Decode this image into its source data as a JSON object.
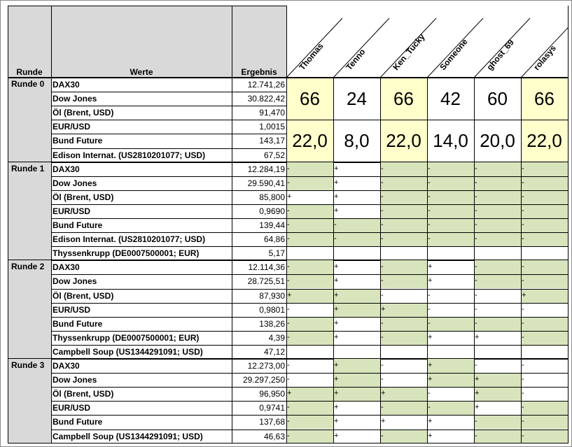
{
  "headers": {
    "runde": "Runde",
    "werte": "Werte",
    "ergebnis": "Ergebnis"
  },
  "players": [
    "Thomas",
    "Tenno",
    "Ken_Tucky",
    "Someone",
    "ghost_69",
    "rolasys"
  ],
  "rounds": [
    {
      "name": "Runde 0",
      "rows": [
        {
          "label": "DAX30",
          "value": "12.741,26"
        },
        {
          "label": "Dow Jones",
          "value": "30.822,42"
        },
        {
          "label": "Öl (Brent, USD)",
          "value": "91,470"
        },
        {
          "label": "EUR/USD",
          "value": "1,0015"
        },
        {
          "label": "Bund Future",
          "value": "143,17"
        },
        {
          "label": "Edison Internat. (US2810201077; USD)",
          "value": "67,52"
        }
      ],
      "scores_top": [
        "66",
        "24",
        "66",
        "42",
        "60",
        "66"
      ],
      "scores_bottom": [
        "22,0",
        "8,0",
        "22,0",
        "14,0",
        "20,0",
        "22,0"
      ]
    },
    {
      "name": "Runde 1",
      "rows": [
        {
          "label": "DAX30",
          "value": "12.284,19",
          "tips": [
            "-",
            "+",
            "-",
            "-",
            "-",
            "-"
          ],
          "green": [
            true,
            false,
            true,
            true,
            true,
            true
          ]
        },
        {
          "label": "Dow Jones",
          "value": "29.590,41",
          "tips": [
            "-",
            "+",
            "-",
            "-",
            "-",
            "-"
          ],
          "green": [
            true,
            false,
            true,
            true,
            true,
            true
          ]
        },
        {
          "label": "Öl (Brent, USD)",
          "value": "85,800",
          "tips": [
            "+",
            "+",
            "-",
            "-",
            "-",
            "-"
          ],
          "green": [
            false,
            false,
            true,
            true,
            true,
            true
          ]
        },
        {
          "label": "EUR/USD",
          "value": "0,9690",
          "tips": [
            "-",
            "+",
            "-",
            "-",
            "-",
            "-"
          ],
          "green": [
            true,
            false,
            true,
            true,
            true,
            true
          ]
        },
        {
          "label": "Bund Future",
          "value": "139,44",
          "tips": [
            "-",
            "-",
            "-",
            "-",
            "-",
            "-"
          ],
          "green": [
            true,
            true,
            true,
            true,
            true,
            true
          ]
        },
        {
          "label": "Edison Internat. (US2810201077; USD)",
          "value": "64,86",
          "tips": [
            "-",
            "-",
            "-",
            "-",
            "-",
            "-"
          ],
          "green": [
            true,
            true,
            true,
            true,
            true,
            true
          ]
        },
        {
          "label": "Thyssenkrupp (DE0007500001; EUR)",
          "value": "5,17"
        }
      ]
    },
    {
      "name": "Runde 2",
      "rows": [
        {
          "label": "DAX30",
          "value": "12.114,36",
          "tips": [
            "-",
            "+",
            "-",
            "+",
            "-",
            "-"
          ],
          "green": [
            true,
            false,
            true,
            false,
            true,
            true
          ]
        },
        {
          "label": "Dow Jones",
          "value": "28.725,51",
          "tips": [
            "-",
            "+",
            "-",
            "+",
            "-",
            "-"
          ],
          "green": [
            true,
            false,
            true,
            false,
            true,
            true
          ]
        },
        {
          "label": "Öl (Brent, USD)",
          "value": "87,930",
          "tips": [
            "+",
            "+",
            "-",
            "-",
            "-",
            "+"
          ],
          "green": [
            true,
            true,
            false,
            false,
            false,
            true
          ]
        },
        {
          "label": "EUR/USD",
          "value": "0,9801",
          "tips": [
            "-",
            "+",
            "+",
            "-",
            "-",
            "-"
          ],
          "green": [
            false,
            true,
            true,
            false,
            false,
            false
          ]
        },
        {
          "label": "Bund Future",
          "value": "138,26",
          "tips": [
            "-",
            "+",
            "-",
            "-",
            "-",
            "-"
          ],
          "green": [
            true,
            false,
            true,
            true,
            true,
            true
          ]
        },
        {
          "label": "Thyssenkrupp (DE0007500001; EUR)",
          "value": "4,39",
          "tips": [
            "-",
            "+",
            "-",
            "+",
            "+",
            "-"
          ],
          "green": [
            true,
            false,
            true,
            false,
            false,
            true
          ]
        },
        {
          "label": "Campbell Soup (US1344291091; USD)",
          "value": "47,12"
        }
      ]
    },
    {
      "name": "Runde 3",
      "rows": [
        {
          "label": "DAX30",
          "value": "12.273,00",
          "tips": [
            "-",
            "+",
            "-",
            "+",
            "-",
            "-"
          ],
          "green": [
            false,
            true,
            false,
            true,
            false,
            false
          ]
        },
        {
          "label": "Dow Jones",
          "value": "29.297,250",
          "tips": [
            "-",
            "+",
            "-",
            "+",
            "+",
            "-"
          ],
          "green": [
            false,
            true,
            false,
            true,
            true,
            false
          ]
        },
        {
          "label": "Öl (Brent, USD)",
          "value": "96,950",
          "tips": [
            "+",
            "+",
            "+",
            "-",
            "+",
            "-"
          ],
          "green": [
            true,
            true,
            true,
            false,
            true,
            false
          ]
        },
        {
          "label": "EUR/USD",
          "value": "0,9741",
          "tips": [
            "-",
            "+",
            "-",
            "-",
            "+",
            "-"
          ],
          "green": [
            true,
            false,
            true,
            true,
            false,
            true
          ]
        },
        {
          "label": "Bund Future",
          "value": "137,68",
          "tips": [
            "-",
            "+",
            "+",
            "+",
            "-",
            "-"
          ],
          "green": [
            true,
            false,
            false,
            false,
            true,
            true
          ]
        },
        {
          "label": "Campbell Soup (US1344291091; USD)",
          "value": "46,63",
          "tips": [
            "-",
            "+",
            "-",
            "+",
            "-",
            "-"
          ],
          "green": [
            true,
            false,
            true,
            false,
            true,
            true
          ]
        }
      ]
    }
  ],
  "colors": {
    "header_gray": "#d9d9d9",
    "score_yellow": "#ffffcc",
    "tip_green": "#d8e4bc"
  }
}
